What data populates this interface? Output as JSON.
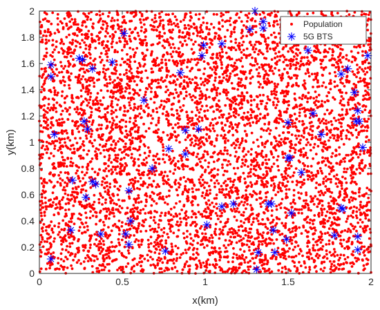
{
  "chart_data": {
    "type": "scatter",
    "title": "",
    "xlabel": "x(km)",
    "ylabel": "y(km)",
    "xlim": [
      0,
      2
    ],
    "ylim": [
      0,
      2
    ],
    "x_ticks": [
      "0",
      "0.5",
      "1",
      "1.5",
      "2"
    ],
    "y_ticks": [
      "0",
      "0.2",
      "0.4",
      "0.6",
      "0.8",
      "1",
      "1.2",
      "1.4",
      "1.6",
      "1.8",
      "2"
    ],
    "grid": false,
    "legend_position": "top-right",
    "series": [
      {
        "name": "Population",
        "marker": "dot",
        "color": "#ff0000",
        "count": 6000,
        "distribution": "uniform random over [0,2] x [0,2] km"
      },
      {
        "name": "5G BTS",
        "marker": "asterisk",
        "color": "#0000ff",
        "points": [
          [
            1.3,
            2.0
          ],
          [
            1.35,
            1.92
          ],
          [
            1.35,
            1.87
          ],
          [
            1.27,
            1.86
          ],
          [
            0.51,
            1.83
          ],
          [
            1.98,
            1.66
          ],
          [
            1.1,
            1.75
          ],
          [
            0.99,
            1.74
          ],
          [
            0.98,
            1.66
          ],
          [
            1.62,
            1.7
          ],
          [
            0.24,
            1.64
          ],
          [
            0.26,
            1.63
          ],
          [
            0.44,
            1.61
          ],
          [
            0.07,
            1.59
          ],
          [
            1.86,
            1.56
          ],
          [
            0.32,
            1.56
          ],
          [
            1.82,
            1.52
          ],
          [
            0.85,
            1.53
          ],
          [
            0.07,
            1.5
          ],
          [
            1.9,
            1.38
          ],
          [
            0.63,
            1.32
          ],
          [
            1.92,
            1.24
          ],
          [
            1.93,
            1.16
          ],
          [
            1.91,
            1.16
          ],
          [
            1.65,
            1.22
          ],
          [
            0.27,
            1.16
          ],
          [
            1.5,
            1.15
          ],
          [
            0.96,
            1.1
          ],
          [
            0.29,
            1.1
          ],
          [
            0.88,
            1.09
          ],
          [
            1.7,
            1.06
          ],
          [
            0.09,
            1.06
          ],
          [
            1.95,
            0.96
          ],
          [
            0.78,
            0.95
          ],
          [
            0.88,
            0.91
          ],
          [
            1.5,
            0.88
          ],
          [
            1.51,
            0.88
          ],
          [
            0.68,
            0.8
          ],
          [
            1.58,
            0.77
          ],
          [
            0.2,
            0.71
          ],
          [
            0.32,
            0.7
          ],
          [
            0.34,
            0.68
          ],
          [
            0.54,
            0.63
          ],
          [
            0.28,
            0.58
          ],
          [
            1.38,
            0.53
          ],
          [
            1.4,
            0.53
          ],
          [
            1.1,
            0.51
          ],
          [
            1.17,
            0.53
          ],
          [
            1.82,
            0.5
          ],
          [
            1.83,
            0.49
          ],
          [
            1.52,
            0.46
          ],
          [
            0.55,
            0.4
          ],
          [
            1.01,
            0.37
          ],
          [
            0.19,
            0.33
          ],
          [
            1.41,
            0.33
          ],
          [
            0.37,
            0.3
          ],
          [
            0.52,
            0.3
          ],
          [
            1.78,
            0.29
          ],
          [
            1.92,
            0.28
          ],
          [
            1.49,
            0.26
          ],
          [
            0.54,
            0.22
          ],
          [
            0.76,
            0.17
          ],
          [
            1.32,
            0.16
          ],
          [
            1.42,
            0.16
          ],
          [
            1.92,
            0.18
          ],
          [
            0.07,
            0.11
          ],
          [
            1.31,
            0.03
          ]
        ]
      }
    ]
  }
}
